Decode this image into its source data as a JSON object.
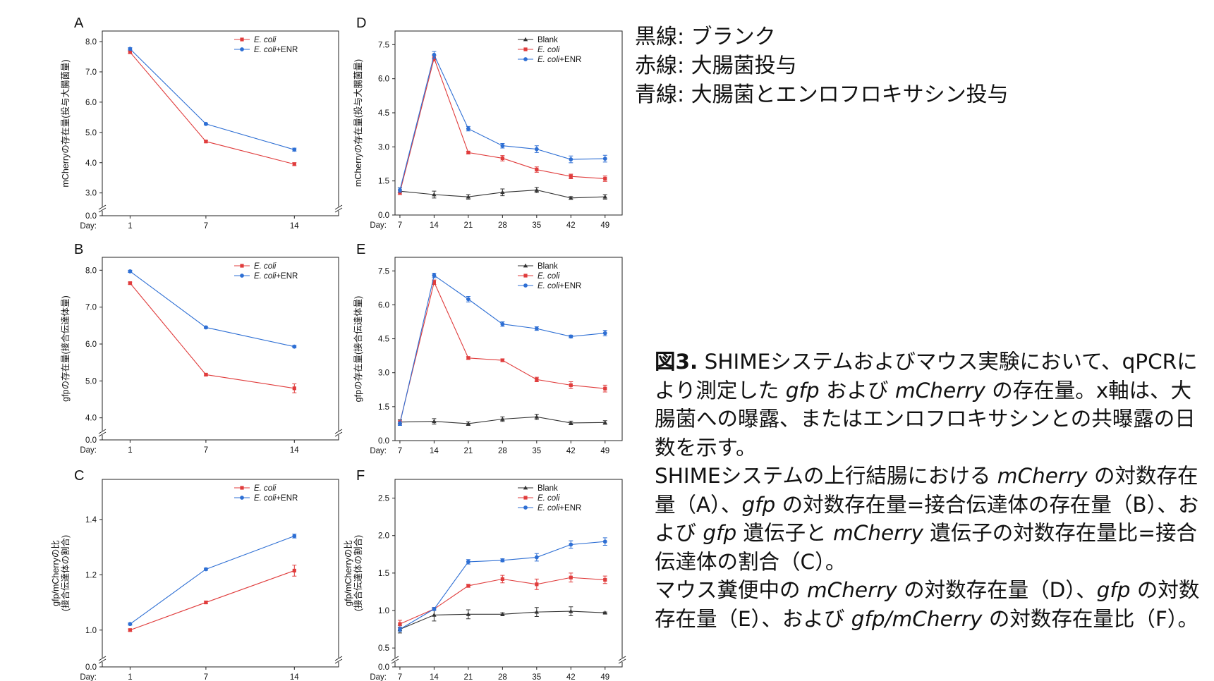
{
  "side_legend": [
    "黒線: ブランク",
    "赤線: 大腸菌投与",
    "青線: 大腸菌とエンロフロキサシン投与"
  ],
  "caption": {
    "label": "図3.",
    "parts": [
      " SHIMEシステムおよびマウス実験において、qPCRにより測定した ",
      {
        "i": "gfp"
      },
      " および ",
      {
        "i": "mCherry"
      },
      " の存在量。x軸は、大腸菌への曝露、またはエンロフロキサシンとの共曝露の日数を示す。",
      {
        "br": true
      },
      "SHIMEシステムの上行結腸における ",
      {
        "i": "mCherry"
      },
      " の対数存在量（A）、",
      {
        "i": "gfp"
      },
      " の対数存在量=接合伝達体の存在量（B）、および ",
      {
        "i": "gfp"
      },
      " 遺伝子と ",
      {
        "i": "mCherry"
      },
      " 遺伝子の対数存在量比=接合伝達体の割合（C）。",
      {
        "br": true
      },
      "マウス糞便中の ",
      {
        "i": "mCherry"
      },
      " の対数存在量（D）、",
      {
        "i": "gfp"
      },
      " の対数存在量（E）、および ",
      {
        "i": "gfp/mCherry"
      },
      " の対数存在量比（F）。"
    ]
  },
  "colors": {
    "blank": "#333333",
    "ecoli": "#e03c3c",
    "ecoli_enr": "#2e6fd4"
  },
  "chart_data": [
    {
      "panel": "A",
      "type": "line",
      "ylabel": "mCherryの存在量(投与大腸菌量)",
      "x_title": "Day:",
      "x": [
        1,
        7,
        14
      ],
      "xlim": [
        -1.2,
        17.5
      ],
      "ylim": [
        2.55,
        8.35
      ],
      "yticks": [
        "3.0",
        "4.0",
        "5.0",
        "6.0",
        "7.0",
        "8.0"
      ],
      "axis_break": true,
      "axis_zero_label": "0.0",
      "legend": "top-right",
      "series": [
        {
          "name": "E. coli",
          "name_italic": "E. coli",
          "name_suffix": "",
          "color_key": "ecoli",
          "marker": "square",
          "values": [
            7.65,
            4.7,
            3.95
          ],
          "errors": [
            0.04,
            0.03,
            0.05
          ]
        },
        {
          "name": "E. coli+ENR",
          "name_italic": "E. coli",
          "name_suffix": "+ENR",
          "color_key": "ecoli_enr",
          "marker": "circle",
          "values": [
            7.76,
            5.28,
            4.43
          ],
          "errors": [
            0.04,
            0.03,
            0.05
          ]
        }
      ]
    },
    {
      "panel": "B",
      "type": "line",
      "ylabel": "gfpの存在量(接合伝達体量)",
      "x_title": "Day:",
      "x": [
        1,
        7,
        14
      ],
      "xlim": [
        -1.2,
        17.5
      ],
      "ylim": [
        3.65,
        8.35
      ],
      "yticks": [
        "4.0",
        "5.0",
        "6.0",
        "7.0",
        "8.0"
      ],
      "axis_break": true,
      "axis_zero_label": "0.0",
      "legend": "top-right",
      "series": [
        {
          "name": "E. coli",
          "name_italic": "E. coli",
          "name_suffix": "",
          "color_key": "ecoli",
          "marker": "square",
          "values": [
            7.65,
            5.17,
            4.8
          ],
          "errors": [
            0.03,
            0.03,
            0.12
          ]
        },
        {
          "name": "E. coli+ENR",
          "name_italic": "E. coli",
          "name_suffix": "+ENR",
          "color_key": "ecoli_enr",
          "marker": "circle",
          "values": [
            7.97,
            6.45,
            5.93
          ],
          "errors": [
            0.03,
            0.03,
            0.03
          ]
        }
      ]
    },
    {
      "panel": "C",
      "type": "line",
      "ylabel": "gfp/mCherryの比",
      "ylabel2": "(接合伝達体の割合)",
      "x_title": "Day:",
      "x": [
        1,
        7,
        14
      ],
      "xlim": [
        -1.2,
        17.5
      ],
      "ylim": [
        0.9,
        1.545
      ],
      "yticks": [
        "1.0",
        "1.2",
        "1.4"
      ],
      "axis_break": true,
      "axis_zero_label": "0.0",
      "legend": "top-right",
      "series": [
        {
          "name": "E. coli",
          "name_italic": "E. coli",
          "name_suffix": "",
          "color_key": "ecoli",
          "marker": "square",
          "values": [
            1.0,
            1.1,
            1.215
          ],
          "errors": [
            0.004,
            0.005,
            0.02
          ]
        },
        {
          "name": "E. coli+ENR",
          "name_italic": "E. coli",
          "name_suffix": "+ENR",
          "color_key": "ecoli_enr",
          "marker": "circle",
          "values": [
            1.022,
            1.22,
            1.34
          ],
          "errors": [
            0.004,
            0.004,
            0.007
          ]
        }
      ]
    },
    {
      "panel": "D",
      "type": "line",
      "ylabel": "mCherryの存在量(投与大腸菌量)",
      "x_title": "Day:",
      "x": [
        7,
        14,
        21,
        28,
        35,
        42,
        49
      ],
      "xlim": [
        6.0,
        52.5
      ],
      "ylim": [
        0.0,
        8.1
      ],
      "yticks": [
        "0.0",
        "1.5",
        "3.0",
        "4.5",
        "6.0",
        "7.5"
      ],
      "axis_break": false,
      "legend": "top-right",
      "series": [
        {
          "name": "Blank",
          "name_italic": "",
          "name_suffix": "Blank",
          "color_key": "blank",
          "marker": "triangle",
          "values": [
            1.05,
            0.9,
            0.8,
            1.0,
            1.1,
            0.75,
            0.8
          ],
          "errors": [
            0.15,
            0.15,
            0.1,
            0.15,
            0.12,
            0.06,
            0.1
          ]
        },
        {
          "name": "E. coli",
          "name_italic": "E. coli",
          "name_suffix": "",
          "color_key": "ecoli",
          "marker": "square",
          "values": [
            1.0,
            6.9,
            2.75,
            2.5,
            2.0,
            1.7,
            1.6
          ],
          "errors": [
            0.1,
            0.12,
            0.06,
            0.12,
            0.12,
            0.1,
            0.12
          ]
        },
        {
          "name": "E. coli+ENR",
          "name_italic": "E. coli",
          "name_suffix": "+ENR",
          "color_key": "ecoli_enr",
          "marker": "circle",
          "values": [
            1.1,
            7.05,
            3.8,
            3.05,
            2.9,
            2.45,
            2.48
          ],
          "errors": [
            0.1,
            0.15,
            0.1,
            0.1,
            0.15,
            0.15,
            0.15
          ]
        }
      ]
    },
    {
      "panel": "E",
      "type": "line",
      "ylabel": "gfpの存在量(接合伝達体量)",
      "x_title": "Day:",
      "x": [
        7,
        14,
        21,
        28,
        35,
        42,
        49
      ],
      "xlim": [
        6.0,
        52.5
      ],
      "ylim": [
        0.0,
        8.1
      ],
      "yticks": [
        "0.0",
        "1.5",
        "3.0",
        "4.5",
        "6.0",
        "7.5"
      ],
      "axis_break": false,
      "legend": "top-right",
      "series": [
        {
          "name": "Blank",
          "name_italic": "",
          "name_suffix": "Blank",
          "color_key": "blank",
          "marker": "triangle",
          "values": [
            0.82,
            0.85,
            0.75,
            0.95,
            1.05,
            0.78,
            0.8
          ],
          "errors": [
            0.1,
            0.12,
            0.08,
            0.1,
            0.12,
            0.08,
            0.08
          ]
        },
        {
          "name": "E. coli",
          "name_italic": "E. coli",
          "name_suffix": "",
          "color_key": "ecoli",
          "marker": "square",
          "values": [
            0.8,
            7.0,
            3.65,
            3.55,
            2.7,
            2.45,
            2.3
          ],
          "errors": [
            0.08,
            0.1,
            0.06,
            0.06,
            0.1,
            0.15,
            0.15
          ]
        },
        {
          "name": "E. coli+ENR",
          "name_italic": "E. coli",
          "name_suffix": "+ENR",
          "color_key": "ecoli_enr",
          "marker": "circle",
          "values": [
            0.75,
            7.3,
            6.25,
            5.15,
            4.95,
            4.6,
            4.75
          ],
          "errors": [
            0.08,
            0.1,
            0.12,
            0.1,
            0.08,
            0.06,
            0.12
          ]
        }
      ]
    },
    {
      "panel": "F",
      "type": "line",
      "ylabel": "gfp/mCherryの比",
      "ylabel2": "(接合伝達体の割合)",
      "x_title": "Day:",
      "x": [
        7,
        14,
        21,
        28,
        35,
        42,
        49
      ],
      "xlim": [
        6.0,
        52.5
      ],
      "ylim": [
        0.37,
        2.75
      ],
      "yticks": [
        "0.5",
        "1.0",
        "1.5",
        "2.0",
        "2.5"
      ],
      "axis_break": true,
      "axis_zero_label": "0.0",
      "legend": "top-right",
      "series": [
        {
          "name": "Blank",
          "name_italic": "",
          "name_suffix": "Blank",
          "color_key": "blank",
          "marker": "triangle",
          "values": [
            0.75,
            0.94,
            0.95,
            0.95,
            0.98,
            0.99,
            0.97
          ],
          "errors": [
            0.05,
            0.08,
            0.06,
            0.02,
            0.06,
            0.06,
            0.01
          ]
        },
        {
          "name": "E. coli",
          "name_italic": "E. coli",
          "name_suffix": "",
          "color_key": "ecoli",
          "marker": "square",
          "values": [
            0.82,
            1.02,
            1.33,
            1.42,
            1.35,
            1.44,
            1.41
          ],
          "errors": [
            0.05,
            0.02,
            0.02,
            0.05,
            0.07,
            0.06,
            0.05
          ]
        },
        {
          "name": "E. coli+ENR",
          "name_italic": "E. coli",
          "name_suffix": "+ENR",
          "color_key": "ecoli_enr",
          "marker": "circle",
          "values": [
            0.75,
            1.02,
            1.65,
            1.67,
            1.71,
            1.88,
            1.92
          ],
          "errors": [
            0.03,
            0.02,
            0.03,
            0.02,
            0.05,
            0.05,
            0.05
          ]
        }
      ]
    }
  ]
}
